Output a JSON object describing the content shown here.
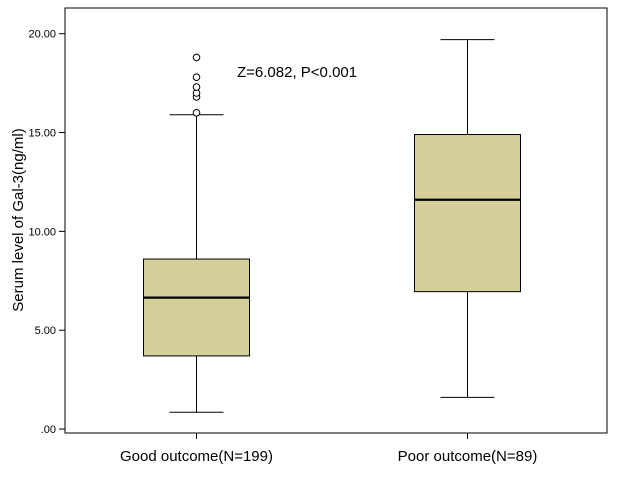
{
  "chart_data": {
    "type": "box",
    "title": "",
    "xlabel": "",
    "ylabel": "Serum level of Gal-3(ng/ml)",
    "ylim": [
      -0.2,
      21.3
    ],
    "yticks": [
      0,
      5,
      10,
      15,
      20
    ],
    "ytick_labels": [
      ".00",
      "5.00",
      "10.00",
      "15.00",
      "20.00"
    ],
    "grid": false,
    "legend": "none",
    "box_color": "#d4cf9b",
    "annotation": "Z=6.082, P<0.001",
    "categories": [
      "Good outcome(N=199)",
      "Poor outcome(N=89)"
    ],
    "boxes": [
      {
        "category": "Good outcome(N=199)",
        "whisker_low": 0.85,
        "q1": 3.7,
        "median": 6.65,
        "q3": 8.6,
        "whisker_high": 15.9,
        "outliers": [
          16.0,
          16.8,
          17.0,
          17.3,
          17.8,
          18.8
        ]
      },
      {
        "category": "Poor outcome(N=89)",
        "whisker_low": 1.6,
        "q1": 6.95,
        "median": 11.6,
        "q3": 14.9,
        "whisker_high": 19.7,
        "outliers": []
      }
    ]
  }
}
